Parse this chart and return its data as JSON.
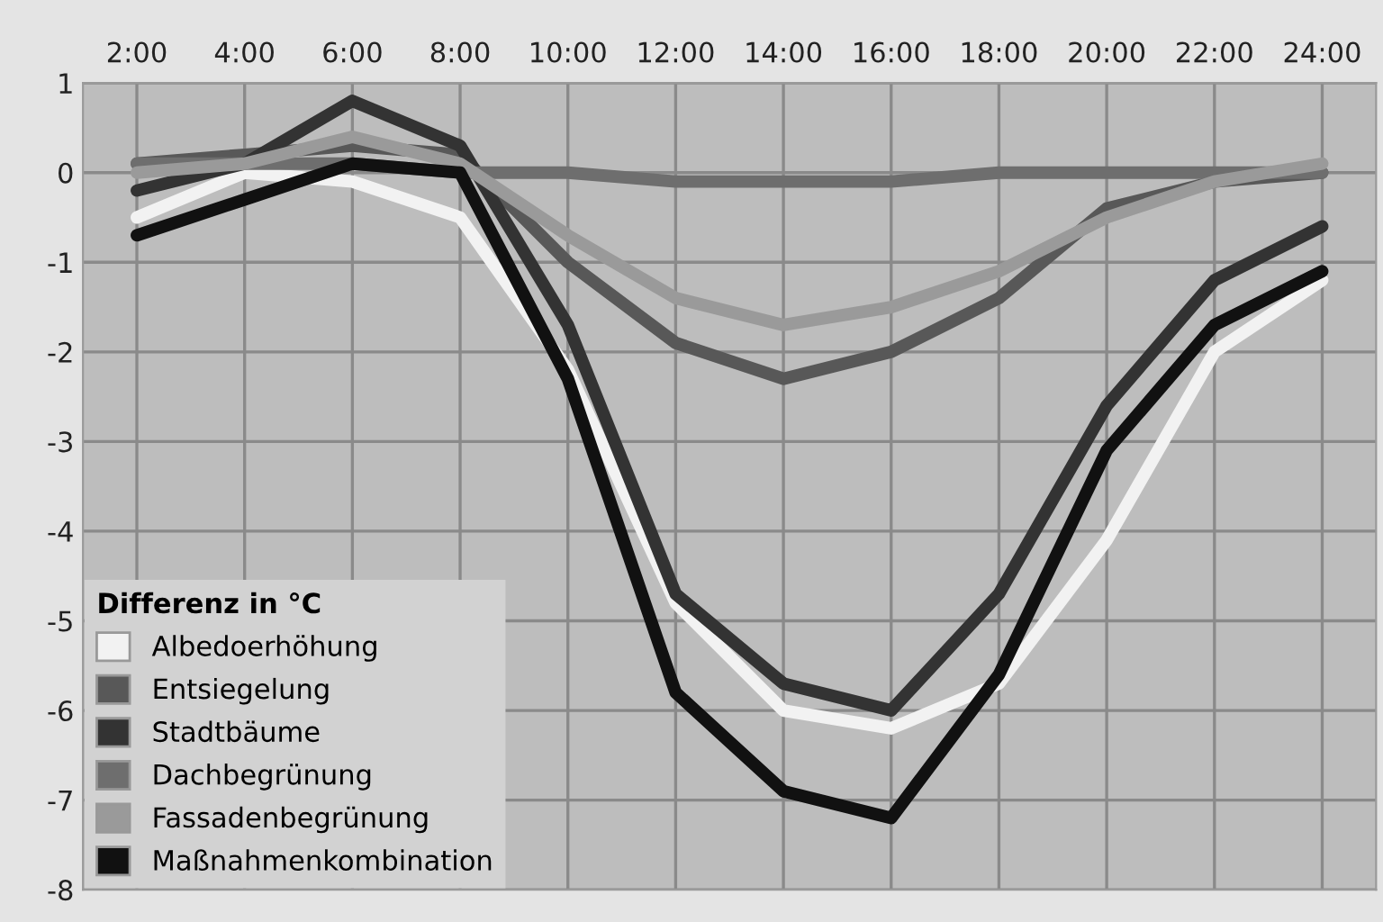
{
  "chart_data": {
    "type": "line",
    "legend_title": "Differenz in °C",
    "x": [
      2,
      4,
      6,
      8,
      10,
      12,
      14,
      16,
      18,
      20,
      22,
      24
    ],
    "xlim": [
      1,
      25
    ],
    "xticks": [
      {
        "value": 2,
        "label": "2:00"
      },
      {
        "value": 4,
        "label": "4:00"
      },
      {
        "value": 6,
        "label": "6:00"
      },
      {
        "value": 8,
        "label": "8:00"
      },
      {
        "value": 10,
        "label": "10:00"
      },
      {
        "value": 12,
        "label": "12:00"
      },
      {
        "value": 14,
        "label": "14:00"
      },
      {
        "value": 16,
        "label": "16:00"
      },
      {
        "value": 18,
        "label": "18:00"
      },
      {
        "value": 20,
        "label": "20:00"
      },
      {
        "value": 22,
        "label": "22:00"
      },
      {
        "value": 24,
        "label": "24:00"
      }
    ],
    "ylim": [
      -8,
      1
    ],
    "yticks": [
      -8,
      -7,
      -6,
      -5,
      -4,
      -3,
      -2,
      -1,
      0,
      1
    ],
    "grid": true,
    "legend": "bottom left",
    "marker": "none",
    "line_style": "solid",
    "series": [
      {
        "name": "Albedoerhöhung",
        "color": "#f2f2f2",
        "values": [
          -0.5,
          0.0,
          -0.1,
          -0.5,
          -2.2,
          -4.8,
          -6.0,
          -6.2,
          -5.7,
          -4.1,
          -2.0,
          -1.2
        ]
      },
      {
        "name": "Entsiegelung",
        "color": "#585858",
        "values": [
          0.1,
          0.2,
          0.3,
          0.2,
          -1.0,
          -1.9,
          -2.3,
          -2.0,
          -1.4,
          -0.4,
          -0.1,
          0.0
        ]
      },
      {
        "name": "Stadtbäume",
        "color": "#333333",
        "values": [
          -0.2,
          0.1,
          0.8,
          0.3,
          -1.7,
          -4.7,
          -5.7,
          -6.0,
          -4.7,
          -2.6,
          -1.2,
          -0.6
        ]
      },
      {
        "name": "Dachbegrünung",
        "color": "#6e6e6e",
        "values": [
          0.1,
          0.1,
          0.1,
          0.0,
          0.0,
          -0.1,
          -0.1,
          -0.1,
          0.0,
          0.0,
          0.0,
          0.0
        ]
      },
      {
        "name": "Fassadenbegrünung",
        "color": "#9a9a9a",
        "values": [
          0.0,
          0.1,
          0.4,
          0.1,
          -0.7,
          -1.4,
          -1.7,
          -1.5,
          -1.1,
          -0.5,
          -0.1,
          0.1
        ]
      },
      {
        "name": "Maßnahmenkombination",
        "color": "#111111",
        "values": [
          -0.7,
          -0.3,
          0.1,
          0.0,
          -2.3,
          -5.8,
          -6.9,
          -7.2,
          -5.6,
          -3.1,
          -1.7,
          -1.1
        ]
      }
    ]
  }
}
